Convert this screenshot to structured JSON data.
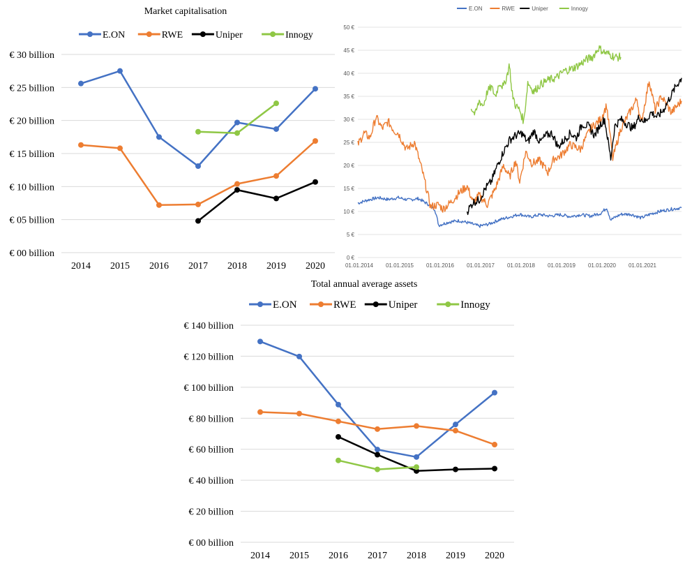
{
  "chart_data": [
    {
      "type": "line",
      "title": "Market capitalisation",
      "x": [
        2014,
        2015,
        2016,
        2017,
        2018,
        2019,
        2020
      ],
      "x_tick_labels": [
        "2014",
        "2015",
        "2016",
        "2017",
        "2018",
        "2019",
        "2020"
      ],
      "ylim": [
        0,
        30
      ],
      "y_ticks": [
        0,
        5,
        10,
        15,
        20,
        25,
        30
      ],
      "y_tick_labels": [
        "€ 00 billion",
        "€ 05 billion",
        "€ 10 billion",
        "€ 15 billion",
        "€ 20 billion",
        "€ 25 billion",
        "€ 30 billion"
      ],
      "grid": true,
      "legend_position": "top",
      "series": [
        {
          "name": "E.ON",
          "color": "#4472c4",
          "values": [
            25.6,
            27.5,
            17.5,
            13.1,
            19.7,
            18.7,
            24.8
          ]
        },
        {
          "name": "RWE",
          "color": "#ed7d31",
          "values": [
            16.3,
            15.8,
            7.2,
            7.3,
            10.4,
            11.6,
            16.9
          ]
        },
        {
          "name": "Uniper",
          "color": "#000000",
          "values": [
            null,
            null,
            null,
            4.8,
            9.5,
            8.2,
            10.7
          ]
        },
        {
          "name": "Innogy",
          "color": "#8fc745",
          "values": [
            null,
            null,
            null,
            18.3,
            18.1,
            22.6,
            null
          ]
        }
      ]
    },
    {
      "type": "line",
      "title": "",
      "x_tick_labels": [
        "01.01.2014",
        "01.01.2015",
        "01.01.2016",
        "01.01.2017",
        "01.01.2018",
        "01.01.2019",
        "01.01.2020",
        "01.01.2021"
      ],
      "x_ticks_years": [
        2014,
        2015,
        2016,
        2017,
        2018,
        2019,
        2020,
        2021
      ],
      "xlim_years": [
        2014.0,
        2022.0
      ],
      "ylim": [
        0,
        50
      ],
      "y_ticks": [
        0,
        5,
        10,
        15,
        20,
        25,
        30,
        35,
        40,
        45,
        50
      ],
      "y_tick_labels": [
        "0 €",
        "5 €",
        "10 €",
        "15 €",
        "20 €",
        "25 €",
        "30 €",
        "35 €",
        "40 €",
        "45 €",
        "50 €"
      ],
      "grid": true,
      "legend_position": "top",
      "series": [
        {
          "name": "E.ON",
          "color": "#4472c4",
          "x": [
            2014.0,
            2014.25,
            2014.5,
            2014.75,
            2015.0,
            2015.25,
            2015.5,
            2015.75,
            2015.9,
            2016.0,
            2016.25,
            2016.5,
            2016.75,
            2017.0,
            2017.25,
            2017.5,
            2017.75,
            2018.0,
            2018.25,
            2018.5,
            2018.75,
            2019.0,
            2019.25,
            2019.5,
            2019.75,
            2020.0,
            2020.15,
            2020.25,
            2020.5,
            2020.75,
            2021.0,
            2021.25,
            2021.5,
            2021.75,
            2022.0
          ],
          "values": [
            11.8,
            12.5,
            13.0,
            12.6,
            13.0,
            12.5,
            12.8,
            11.5,
            10.5,
            7.0,
            7.7,
            8.0,
            7.5,
            6.8,
            7.3,
            8.2,
            8.8,
            9.4,
            8.8,
            9.3,
            9.0,
            9.3,
            8.9,
            9.3,
            9.0,
            9.6,
            10.8,
            8.2,
            9.4,
            9.4,
            8.6,
            9.5,
            10.1,
            10.5,
            10.8
          ]
        },
        {
          "name": "RWE",
          "color": "#ed7d31",
          "x": [
            2014.0,
            2014.15,
            2014.3,
            2014.45,
            2014.6,
            2014.75,
            2014.9,
            2015.0,
            2015.2,
            2015.4,
            2015.6,
            2015.8,
            2016.0,
            2016.1,
            2016.3,
            2016.5,
            2016.7,
            2016.85,
            2017.0,
            2017.2,
            2017.4,
            2017.6,
            2017.75,
            2017.9,
            2018.0,
            2018.15,
            2018.3,
            2018.5,
            2018.7,
            2018.85,
            2019.0,
            2019.25,
            2019.5,
            2019.75,
            2020.0,
            2020.15,
            2020.3,
            2020.5,
            2020.75,
            2020.9,
            2021.0,
            2021.2,
            2021.35,
            2021.5,
            2021.75,
            2022.0
          ],
          "values": [
            24.5,
            27.0,
            26.0,
            30.5,
            28.0,
            29.5,
            27.5,
            27.0,
            23.5,
            25.0,
            18.5,
            11.0,
            11.5,
            10.5,
            12.0,
            14.0,
            15.5,
            12.0,
            13.5,
            11.5,
            15.0,
            20.0,
            17.5,
            21.0,
            16.5,
            23.0,
            20.5,
            21.0,
            18.5,
            21.5,
            22.0,
            24.5,
            23.5,
            28.0,
            30.0,
            33.0,
            21.5,
            28.0,
            32.0,
            34.5,
            29.0,
            38.5,
            32.0,
            35.0,
            31.5,
            34.0
          ]
        },
        {
          "name": "Uniper",
          "color": "#000000",
          "x": [
            2016.7,
            2016.85,
            2017.0,
            2017.15,
            2017.3,
            2017.45,
            2017.6,
            2017.75,
            2017.9,
            2018.05,
            2018.2,
            2018.35,
            2018.5,
            2018.65,
            2018.8,
            2018.95,
            2019.1,
            2019.25,
            2019.4,
            2019.55,
            2019.7,
            2019.85,
            2020.0,
            2020.1,
            2020.25,
            2020.35,
            2020.5,
            2020.65,
            2020.8,
            2020.95,
            2021.1,
            2021.25,
            2021.4,
            2021.55,
            2021.7,
            2021.85,
            2022.0
          ],
          "values": [
            10.0,
            12.0,
            12.5,
            15.0,
            16.5,
            20.0,
            23.0,
            25.5,
            26.5,
            27.0,
            25.0,
            27.5,
            25.0,
            26.5,
            27.0,
            24.0,
            25.5,
            27.0,
            26.0,
            29.0,
            28.5,
            26.5,
            29.0,
            30.0,
            21.5,
            28.5,
            30.0,
            29.0,
            28.0,
            30.5,
            29.5,
            31.5,
            30.5,
            32.0,
            34.5,
            37.0,
            39.0
          ]
        },
        {
          "name": "Innogy",
          "color": "#8fc745",
          "x": [
            2016.8,
            2016.9,
            2017.0,
            2017.1,
            2017.2,
            2017.3,
            2017.4,
            2017.5,
            2017.6,
            2017.7,
            2017.75,
            2017.8,
            2017.9,
            2018.0,
            2018.1,
            2018.2,
            2018.35,
            2018.5,
            2018.7,
            2018.9,
            2019.1,
            2019.3,
            2019.5,
            2019.65,
            2019.8,
            2019.95,
            2020.1,
            2020.25,
            2020.35,
            2020.5
          ],
          "values": [
            32.5,
            31.0,
            34.0,
            33.0,
            36.0,
            37.0,
            35.0,
            38.0,
            37.0,
            40.0,
            42.0,
            36.0,
            33.0,
            32.0,
            29.5,
            38.0,
            36.0,
            37.5,
            38.5,
            39.0,
            40.5,
            41.0,
            42.0,
            43.0,
            43.5,
            45.5,
            44.5,
            44.0,
            43.5,
            43.5
          ]
        }
      ]
    },
    {
      "type": "line",
      "title": "Total annual average assets",
      "x": [
        2014,
        2015,
        2016,
        2017,
        2018,
        2019,
        2020
      ],
      "x_tick_labels": [
        "2014",
        "2015",
        "2016",
        "2017",
        "2018",
        "2019",
        "2020"
      ],
      "ylim": [
        0,
        140
      ],
      "y_ticks": [
        0,
        20,
        40,
        60,
        80,
        100,
        120,
        140
      ],
      "y_tick_labels": [
        "€ 00 billion",
        "€ 20 billion",
        "€ 40 billion",
        "€ 60 billion",
        "€ 80 billion",
        "€ 100 billion",
        "€ 120 billion",
        "€ 140 billion"
      ],
      "grid": true,
      "legend_position": "top",
      "series": [
        {
          "name": "E.ON",
          "color": "#4472c4",
          "values": [
            129.5,
            119.8,
            88.8,
            59.8,
            55.0,
            76.0,
            96.5
          ]
        },
        {
          "name": "RWE",
          "color": "#ed7d31",
          "values": [
            84.0,
            83.0,
            78.0,
            73.0,
            75.0,
            72.0,
            63.0
          ]
        },
        {
          "name": "Uniper",
          "color": "#000000",
          "values": [
            null,
            null,
            68.0,
            56.5,
            46.0,
            47.0,
            47.5
          ]
        },
        {
          "name": "Innogy",
          "color": "#8fc745",
          "values": [
            null,
            null,
            52.8,
            47.0,
            48.5,
            null,
            null
          ]
        }
      ]
    }
  ]
}
